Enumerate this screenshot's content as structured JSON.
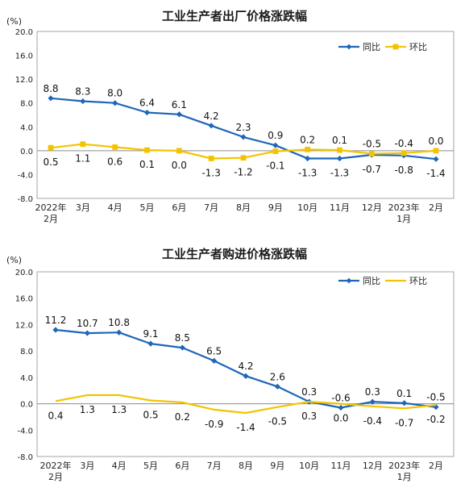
{
  "chart_data": [
    {
      "type": "line",
      "title": "工业生产者出厂价格涨跌幅",
      "unit": "(%)",
      "categories": [
        "2022年\n2月",
        "3月",
        "4月",
        "5月",
        "6月",
        "7月",
        "8月",
        "9月",
        "10月",
        "11月",
        "12月",
        "2023年\n1月",
        "2月"
      ],
      "series": [
        {
          "name": "同比",
          "color": "#1f66b8",
          "marker": "diamond",
          "values": [
            8.8,
            8.3,
            8.0,
            6.4,
            6.1,
            4.2,
            2.3,
            0.9,
            -1.3,
            -1.3,
            -0.7,
            -0.8,
            -1.4
          ]
        },
        {
          "name": "环比",
          "color": "#f2c400",
          "marker": "square",
          "values": [
            0.5,
            1.1,
            0.6,
            0.1,
            0.0,
            -1.3,
            -1.2,
            -0.1,
            0.2,
            0.1,
            -0.5,
            -0.4,
            0.0
          ]
        }
      ],
      "ylim": [
        -8.0,
        20.0
      ],
      "yticks": [
        "20.0",
        "16.0",
        "12.0",
        "8.0",
        "4.0",
        "0.0",
        "-4.0",
        "-8.0"
      ],
      "legend": "top-right",
      "grid": false
    },
    {
      "type": "line",
      "title": "工业生产者购进价格涨跌幅",
      "unit": "(%)",
      "categories": [
        "2022年\n2月",
        "3月",
        "4月",
        "5月",
        "6月",
        "7月",
        "8月",
        "9月",
        "10月",
        "11月",
        "12月",
        "2023年\n1月",
        "2月"
      ],
      "series": [
        {
          "name": "同比",
          "color": "#1f66b8",
          "marker": "diamond",
          "values": [
            11.2,
            10.7,
            10.8,
            9.1,
            8.5,
            6.5,
            4.2,
            2.6,
            0.3,
            -0.6,
            0.3,
            0.1,
            -0.5
          ]
        },
        {
          "name": "环比",
          "color": "#f2c400",
          "marker": "none",
          "values": [
            0.4,
            1.3,
            1.3,
            0.5,
            0.2,
            -0.9,
            -1.4,
            -0.5,
            0.3,
            0.0,
            -0.4,
            -0.7,
            -0.2
          ]
        }
      ],
      "ylim": [
        -8.0,
        20.0
      ],
      "yticks": [
        "20.0",
        "16.0",
        "12.0",
        "8.0",
        "4.0",
        "0.0",
        "-4.0",
        "-8.0"
      ],
      "legend": "top-right",
      "grid": false
    }
  ]
}
